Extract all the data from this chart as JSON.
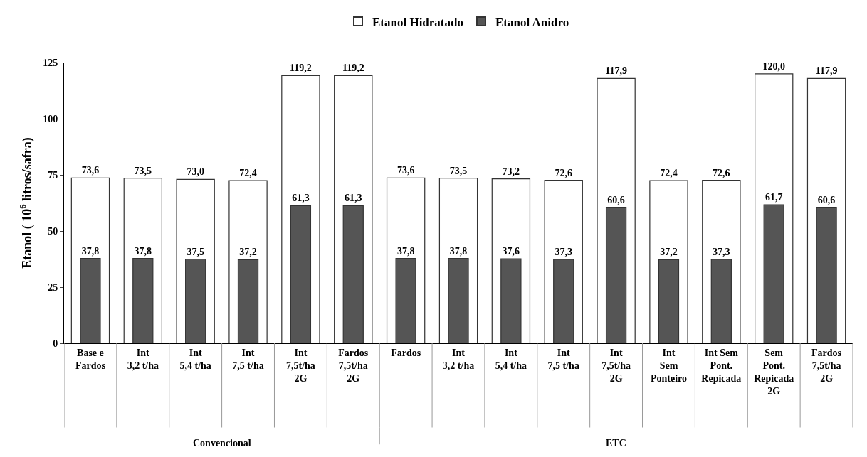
{
  "chart_data": {
    "type": "bar",
    "ylabel": "Etanol ( 10$^{6}$ litros/safra)",
    "categories": [
      "Base e\nFardos",
      "Int\n3,2 t/ha",
      "Int\n5,4 t/ha",
      "Int\n7,5 t/ha",
      "Int\n7,5t/ha\n2G",
      "Fardos\n7,5t/ha\n2G",
      "Fardos",
      "Int\n3,2 t/ha",
      "Int\n5,4 t/ha",
      "Int\n7,5 t/ha",
      "Int\n7,5t/ha\n2G",
      "Int\nSem\nPonteiro",
      "Int Sem\nPont.\nRepicada",
      "Sem\nPont.\nRepicada\n2G",
      "Fardos\n7,5t/ha\n2G"
    ],
    "series": [
      {
        "name": "Etanol Hidratado",
        "color": "#ffffff",
        "values": [
          73.6,
          73.5,
          73.0,
          72.4,
          119.2,
          119.2,
          73.6,
          73.5,
          73.2,
          72.6,
          117.9,
          72.4,
          72.6,
          120.0,
          117.9
        ],
        "value_labels": [
          "73,6",
          "73,5",
          "73,0",
          "72,4",
          "119,2",
          "119,2",
          "73,6",
          "73,5",
          "73,2",
          "72,6",
          "117,9",
          "72,4",
          "72,6",
          "120,0",
          "117,9"
        ]
      },
      {
        "name": "Etanol Anidro",
        "color": "#555555",
        "values": [
          37.8,
          37.8,
          37.5,
          37.2,
          61.3,
          61.3,
          37.8,
          37.8,
          37.6,
          37.3,
          60.6,
          37.2,
          37.3,
          61.7,
          60.6
        ],
        "value_labels": [
          "37,8",
          "37,8",
          "37,5",
          "37,2",
          "61,3",
          "61,3",
          "37,8",
          "37,8",
          "37,6",
          "37,3",
          "60,6",
          "37,2",
          "37,3",
          "61,7",
          "60,6"
        ]
      }
    ],
    "ylim": [
      0,
      125
    ],
    "yticks": [
      0,
      25,
      50,
      75,
      100,
      125
    ],
    "grid": false,
    "legend": "top",
    "annotations": [
      "Convencional",
      "ETC"
    ]
  }
}
